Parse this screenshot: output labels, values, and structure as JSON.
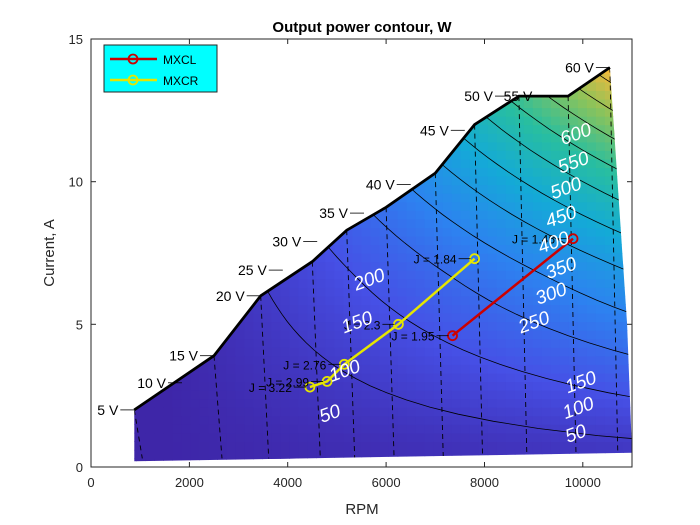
{
  "chart_data": {
    "type": "contour",
    "title": "Output power contour, W",
    "xlabel": "RPM",
    "ylabel": "Current, A",
    "xlim": [
      0,
      11000
    ],
    "ylim": [
      0,
      15
    ],
    "xticks": [
      0,
      2000,
      4000,
      6000,
      8000,
      10000
    ],
    "yticks": [
      0,
      5,
      10,
      15
    ],
    "grid": false,
    "legend": {
      "position": "top-left",
      "background": "#00ffff",
      "entries": [
        {
          "label": "MXCL",
          "color": "#cc0000"
        },
        {
          "label": "MXCR",
          "color": "#e6e600"
        }
      ]
    },
    "envelope": [
      [
        880,
        2.0
      ],
      [
        2500,
        3.9
      ],
      [
        3450,
        6.0
      ],
      [
        4500,
        7.2
      ],
      [
        5200,
        8.3
      ],
      [
        6000,
        9.1
      ],
      [
        7000,
        10.3
      ],
      [
        7800,
        12.0
      ],
      [
        8700,
        13.0
      ],
      [
        9700,
        13.0
      ],
      [
        10550,
        14.0
      ],
      [
        10900,
        5.0
      ],
      [
        11000,
        0.5
      ],
      [
        880,
        0.2
      ]
    ],
    "voltage_line": {
      "color": "#000000",
      "points": [
        [
          880,
          2.0
        ],
        [
          2500,
          3.9
        ],
        [
          3450,
          6.0
        ],
        [
          4500,
          7.2
        ],
        [
          5200,
          8.3
        ],
        [
          6000,
          9.1
        ],
        [
          7000,
          10.3
        ],
        [
          7800,
          12.0
        ],
        [
          8700,
          13.0
        ],
        [
          9700,
          13.0
        ],
        [
          10550,
          14.0
        ]
      ],
      "labels": [
        {
          "text": "5 V",
          "x": 880,
          "y": 2.0
        },
        {
          "text": "10 V",
          "x": 1850,
          "y": 2.95
        },
        {
          "text": "15 V",
          "x": 2500,
          "y": 3.9
        },
        {
          "text": "20 V",
          "x": 3450,
          "y": 6.0
        },
        {
          "text": "25 V",
          "x": 3900,
          "y": 6.9
        },
        {
          "text": "30 V",
          "x": 4600,
          "y": 7.9
        },
        {
          "text": "35 V",
          "x": 5550,
          "y": 8.9
        },
        {
          "text": "40 V",
          "x": 6500,
          "y": 9.9
        },
        {
          "text": "45 V",
          "x": 7600,
          "y": 11.8
        },
        {
          "text": "50 V",
          "x": 8500,
          "y": 13.0
        },
        {
          "text": "55 V",
          "x": 9300,
          "y": 13.0
        },
        {
          "text": "60 V",
          "x": 10550,
          "y": 14.0
        }
      ]
    },
    "contour_levels": [
      50,
      100,
      150,
      200,
      250,
      300,
      350,
      400,
      450,
      500,
      550,
      600
    ],
    "contour_labels": [
      {
        "text": "50",
        "x": 4850,
        "y": 1.9
      },
      {
        "text": "100",
        "x": 5150,
        "y": 3.4
      },
      {
        "text": "150",
        "x": 5400,
        "y": 5.1
      },
      {
        "text": "200",
        "x": 5650,
        "y": 6.6
      },
      {
        "text": "50",
        "x": 9850,
        "y": 1.2
      },
      {
        "text": "100",
        "x": 9900,
        "y": 2.1
      },
      {
        "text": "150",
        "x": 9950,
        "y": 3.0
      },
      {
        "text": "250",
        "x": 9000,
        "y": 5.1
      },
      {
        "text": "300",
        "x": 9350,
        "y": 6.1
      },
      {
        "text": "350",
        "x": 9550,
        "y": 7.0
      },
      {
        "text": "400",
        "x": 9400,
        "y": 7.9
      },
      {
        "text": "450",
        "x": 9550,
        "y": 8.8
      },
      {
        "text": "500",
        "x": 9650,
        "y": 9.8
      },
      {
        "text": "550",
        "x": 9800,
        "y": 10.7
      },
      {
        "text": "600",
        "x": 9850,
        "y": 11.7
      }
    ],
    "series": [
      {
        "name": "MXCL",
        "color": "#cc0000",
        "x": [
          7350,
          9800
        ],
        "y": [
          4.6,
          8.0
        ],
        "labels": [
          "J = 1.95",
          "J = 1.46"
        ]
      },
      {
        "name": "MXCR",
        "color": "#e6e600",
        "x": [
          4450,
          4800,
          5150,
          6250,
          7800
        ],
        "y": [
          2.8,
          3.0,
          3.6,
          5.0,
          7.3
        ],
        "labels": [
          "J = 3.22",
          "J = 2.99",
          "J = 2.76",
          "J = 2.3",
          "J = 1.84"
        ]
      }
    ]
  }
}
